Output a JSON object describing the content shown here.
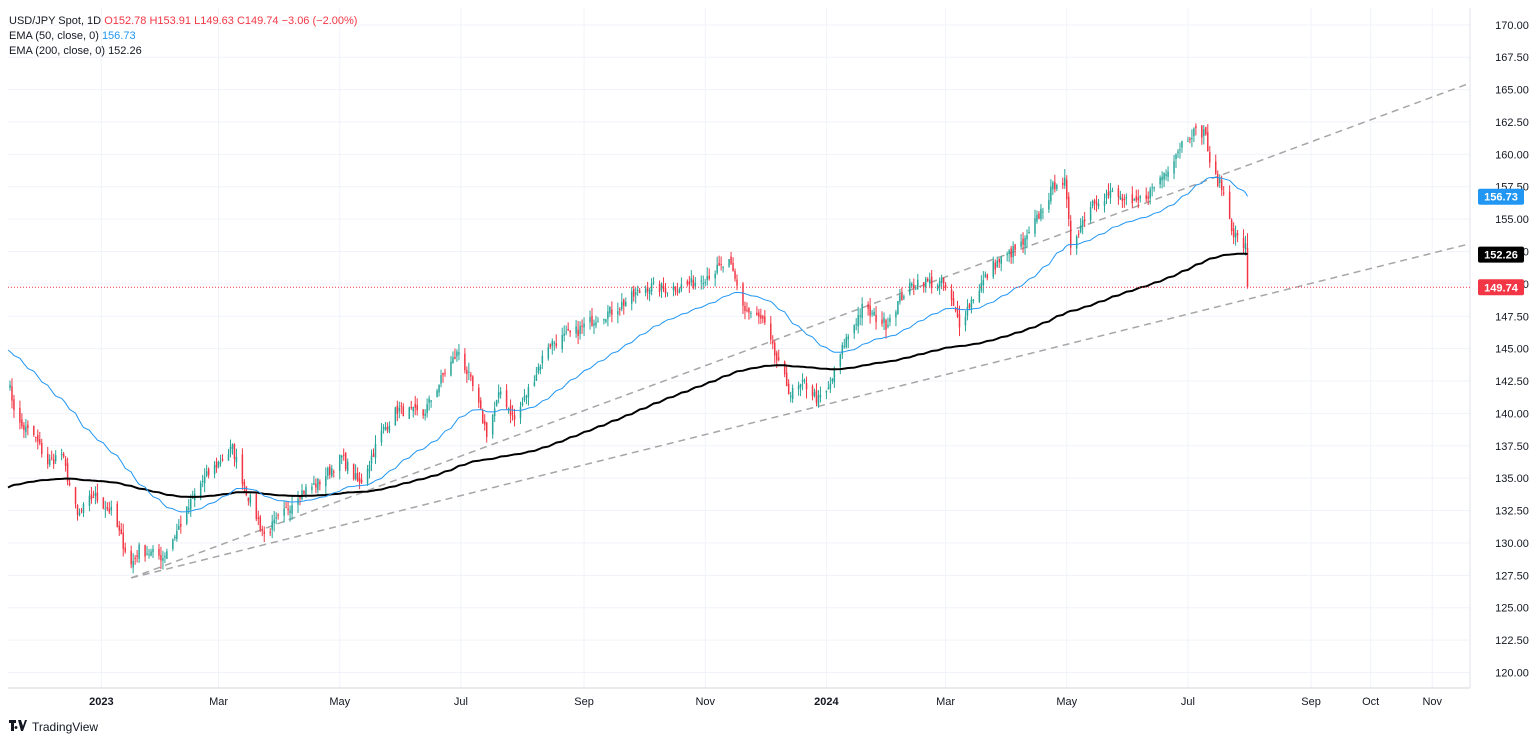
{
  "legend": {
    "symbol": "USD/JPY Spot, 1D",
    "open": "O152.78",
    "high": "H153.91",
    "low": "L149.63",
    "close": "C149.74",
    "change": "−3.06 (−2.00%)",
    "ema50_label": "EMA (50, close, 0)",
    "ema50_value": "156.73",
    "ema200_label": "EMA (200, close, 0)",
    "ema200_value": "152.26"
  },
  "brand": {
    "name": "TradingView",
    "logo_icon": "tradingview-logo-icon"
  },
  "colors": {
    "up": "#26a69a",
    "down": "#f23645",
    "ema50": "#2196f3",
    "ema200": "#000000",
    "trendline": "#a6a6a6",
    "grid": "#f0f3fa",
    "price_line": "#f23645"
  },
  "chart_data": {
    "type": "candlestick",
    "title": "USD/JPY Spot, 1D",
    "x_range": [
      "2022-11-15",
      "2024-11-20"
    ],
    "ylim": [
      118.8,
      171.3
    ],
    "y_ticks": [
      "120.00",
      "122.50",
      "125.00",
      "127.50",
      "130.00",
      "132.50",
      "135.00",
      "137.50",
      "140.00",
      "142.50",
      "145.00",
      "147.50",
      "150.00",
      "152.50",
      "155.00",
      "157.50",
      "160.00",
      "162.50",
      "165.00",
      "167.50",
      "170.00"
    ],
    "x_ticks": [
      {
        "label": "2023",
        "date": "2023-01-01",
        "bold": true
      },
      {
        "label": "Mar",
        "date": "2023-03-01"
      },
      {
        "label": "May",
        "date": "2023-05-01"
      },
      {
        "label": "Jul",
        "date": "2023-07-01"
      },
      {
        "label": "Sep",
        "date": "2023-09-01"
      },
      {
        "label": "Nov",
        "date": "2023-11-01"
      },
      {
        "label": "2024",
        "date": "2024-01-01",
        "bold": true
      },
      {
        "label": "Mar",
        "date": "2024-03-01"
      },
      {
        "label": "May",
        "date": "2024-05-01"
      },
      {
        "label": "Jul",
        "date": "2024-07-01"
      },
      {
        "label": "Sep",
        "date": "2024-09-01"
      },
      {
        "label": "Oct",
        "date": "2024-10-01"
      },
      {
        "label": "Nov",
        "date": "2024-11-01"
      }
    ],
    "price_path": [
      [
        "2022-11-15",
        142.5
      ],
      [
        "2022-11-20",
        139.2
      ],
      [
        "2022-11-28",
        138.3
      ],
      [
        "2022-12-05",
        136.2
      ],
      [
        "2022-12-12",
        136.9
      ],
      [
        "2022-12-20",
        132.0
      ],
      [
        "2022-12-28",
        133.7
      ],
      [
        "2023-01-06",
        132.4
      ],
      [
        "2023-01-16",
        128.3
      ],
      [
        "2023-01-20",
        129.5
      ],
      [
        "2023-02-01",
        128.9
      ],
      [
        "2023-02-10",
        131.5
      ],
      [
        "2023-02-20",
        134.6
      ],
      [
        "2023-03-01",
        136.2
      ],
      [
        "2023-03-08",
        137.3
      ],
      [
        "2023-03-15",
        134.0
      ],
      [
        "2023-03-24",
        130.6
      ],
      [
        "2023-04-03",
        132.3
      ],
      [
        "2023-04-10",
        133.8
      ],
      [
        "2023-04-20",
        134.6
      ],
      [
        "2023-05-02",
        136.6
      ],
      [
        "2023-05-11",
        134.5
      ],
      [
        "2023-05-22",
        138.5
      ],
      [
        "2023-05-30",
        140.3
      ],
      [
        "2023-06-12",
        139.9
      ],
      [
        "2023-06-23",
        143.2
      ],
      [
        "2023-06-30",
        144.8
      ],
      [
        "2023-07-07",
        142.0
      ],
      [
        "2023-07-14",
        138.5
      ],
      [
        "2023-07-21",
        141.7
      ],
      [
        "2023-07-28",
        139.5
      ],
      [
        "2023-08-04",
        141.8
      ],
      [
        "2023-08-14",
        145.3
      ],
      [
        "2023-08-28",
        146.3
      ],
      [
        "2023-09-07",
        147.4
      ],
      [
        "2023-09-15",
        147.9
      ],
      [
        "2023-09-29",
        149.4
      ],
      [
        "2023-10-03",
        149.8
      ],
      [
        "2023-10-13",
        149.6
      ],
      [
        "2023-10-25",
        150.0
      ],
      [
        "2023-11-13",
        151.6
      ],
      [
        "2023-11-21",
        148.0
      ],
      [
        "2023-11-30",
        147.1
      ],
      [
        "2023-12-07",
        144.1
      ],
      [
        "2023-12-14",
        141.5
      ],
      [
        "2023-12-21",
        142.3
      ],
      [
        "2023-12-28",
        141.0
      ],
      [
        "2024-01-02",
        141.8
      ],
      [
        "2024-01-10",
        145.4
      ],
      [
        "2024-01-19",
        148.1
      ],
      [
        "2024-01-31",
        146.9
      ],
      [
        "2024-02-09",
        149.3
      ],
      [
        "2024-02-16",
        150.2
      ],
      [
        "2024-02-29",
        150.0
      ],
      [
        "2024-03-08",
        147.0
      ],
      [
        "2024-03-15",
        149.0
      ],
      [
        "2024-03-25",
        151.4
      ],
      [
        "2024-04-10",
        153.2
      ],
      [
        "2024-04-26",
        158.0
      ],
      [
        "2024-04-30",
        157.8
      ],
      [
        "2024-05-03",
        153.0
      ],
      [
        "2024-05-14",
        156.4
      ],
      [
        "2024-05-24",
        157.0
      ],
      [
        "2024-06-03",
        156.0
      ],
      [
        "2024-06-12",
        157.1
      ],
      [
        "2024-06-20",
        158.8
      ],
      [
        "2024-06-28",
        160.9
      ],
      [
        "2024-07-03",
        161.7
      ],
      [
        "2024-07-10",
        161.7
      ],
      [
        "2024-07-12",
        159.0
      ],
      [
        "2024-07-18",
        157.5
      ],
      [
        "2024-07-24",
        153.9
      ],
      [
        "2024-07-30",
        152.8
      ],
      [
        "2024-07-31",
        149.74
      ]
    ],
    "last_candle": {
      "date": "2024-07-31",
      "open": 152.78,
      "high": 153.91,
      "low": 149.63,
      "close": 149.74
    },
    "ema50_last": 156.73,
    "ema200_last": 152.26,
    "trendlines": [
      {
        "name": "upper",
        "from": [
          "2023-01-16",
          127.3
        ],
        "to": [
          "2024-11-20",
          165.5
        ]
      },
      {
        "name": "lower",
        "from": [
          "2023-01-16",
          127.3
        ],
        "to": [
          "2024-11-20",
          153.1
        ]
      }
    ],
    "price_line": 149.74,
    "axis_badges": [
      {
        "value": "156.73",
        "price": 156.73,
        "bg": "#2196f3",
        "fg": "#ffffff"
      },
      {
        "value": "152.26",
        "price": 152.26,
        "bg": "#000000",
        "fg": "#ffffff"
      },
      {
        "value": "149.74",
        "price": 149.74,
        "bg": "#f23645",
        "fg": "#ffffff"
      }
    ]
  }
}
